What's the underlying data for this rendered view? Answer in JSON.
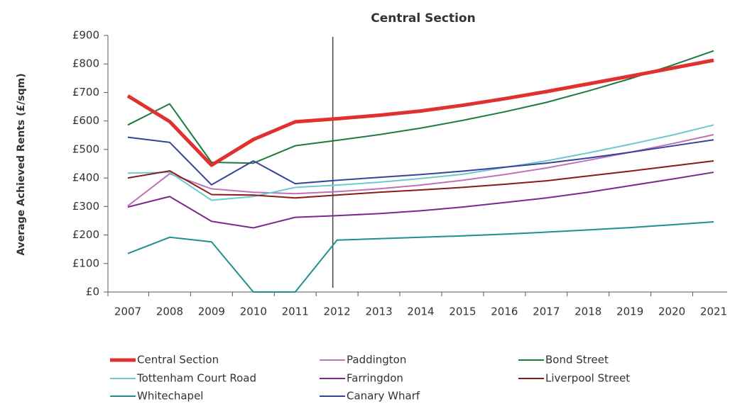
{
  "chart_data": {
    "type": "line",
    "title": "Central Section",
    "y_label": "Average Achieved Rents (£/sqm)",
    "categories": [
      "2007",
      "2008",
      "2009",
      "2010",
      "2011",
      "2012",
      "2013",
      "2014",
      "2015",
      "2016",
      "2017",
      "2018",
      "2019",
      "2020",
      "2021"
    ],
    "ylim": [
      0,
      900
    ],
    "yticks": [
      {
        "value": 0,
        "label": "£0"
      },
      {
        "value": 100,
        "label": "£100"
      },
      {
        "value": 200,
        "label": "£200"
      },
      {
        "value": 300,
        "label": "£300"
      },
      {
        "value": 400,
        "label": "£400"
      },
      {
        "value": 500,
        "label": "£500"
      },
      {
        "value": 600,
        "label": "£600"
      },
      {
        "value": 700,
        "label": "£700"
      },
      {
        "value": 800,
        "label": "£800"
      },
      {
        "value": 900,
        "label": "£900"
      }
    ],
    "grid": false,
    "series": [
      {
        "name": "Central Section",
        "color": "#e03030",
        "width": 5,
        "values": [
          688,
          598,
          445,
          535,
          597,
          608,
          620,
          635,
          655,
          678,
          703,
          730,
          757,
          785,
          813
        ]
      },
      {
        "name": "Paddington",
        "color": "#c070b8",
        "width": 2,
        "values": [
          302,
          415,
          362,
          350,
          345,
          352,
          362,
          375,
          392,
          412,
          435,
          462,
          490,
          520,
          552
        ]
      },
      {
        "name": "Bond Street",
        "color": "#1e7a3e",
        "width": 2,
        "values": [
          586,
          660,
          455,
          452,
          513,
          532,
          552,
          575,
          602,
          632,
          665,
          705,
          748,
          795,
          846
        ]
      },
      {
        "name": "Tottenham Court Road",
        "color": "#6ec8d0",
        "width": 2,
        "values": [
          417,
          420,
          322,
          335,
          367,
          375,
          385,
          398,
          413,
          437,
          460,
          488,
          518,
          550,
          586
        ]
      },
      {
        "name": "Farringdon",
        "color": "#7a2a8a",
        "width": 2,
        "values": [
          298,
          335,
          248,
          225,
          262,
          268,
          275,
          285,
          298,
          314,
          330,
          350,
          373,
          396,
          420
        ]
      },
      {
        "name": "Liverpool Street",
        "color": "#8b1a1a",
        "width": 2,
        "values": [
          400,
          425,
          342,
          340,
          330,
          340,
          350,
          358,
          367,
          378,
          390,
          407,
          424,
          442,
          460
        ]
      },
      {
        "name": "Whitechapel",
        "color": "#1e9090",
        "width": 2,
        "values": [
          135,
          192,
          176,
          0,
          0,
          182,
          187,
          192,
          197,
          203,
          210,
          218,
          226,
          236,
          246
        ]
      },
      {
        "name": "Canary Wharf",
        "color": "#34449a",
        "width": 2,
        "values": [
          543,
          525,
          376,
          460,
          380,
          392,
          402,
          412,
          424,
          438,
          452,
          470,
          490,
          512,
          534
        ]
      }
    ]
  }
}
